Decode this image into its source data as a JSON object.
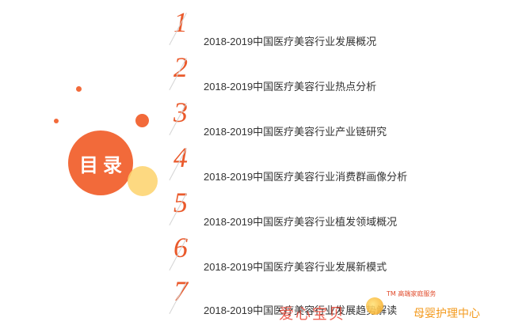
{
  "badge": {
    "title": "目录"
  },
  "toc": [
    {
      "num": "1",
      "text": "2018-2019中国医疗美容行业发展概况"
    },
    {
      "num": "2",
      "text": "2018-2019中国医疗美容行业热点分析"
    },
    {
      "num": "3",
      "text": "2018-2019中国医疗美容行业产业链研究"
    },
    {
      "num": "4",
      "text": "2018-2019中国医疗美容行业消费群画像分析"
    },
    {
      "num": "5",
      "text": "2018-2019中国医疗美容行业植发领域概况"
    },
    {
      "num": "6",
      "text": "2018-2019中国医疗美容行业发展新模式"
    },
    {
      "num": "7",
      "text": "2018-2019中国医疗美容行业发展趋势解读"
    }
  ],
  "watermark": {
    "tm": "TM 高端家庭服务",
    "name": "爱心宝贝",
    "brand": "母婴护理中心"
  },
  "colors": {
    "accent": "#f26a3a",
    "number": "#ea5a2c",
    "yellow": "#fdd26b"
  }
}
